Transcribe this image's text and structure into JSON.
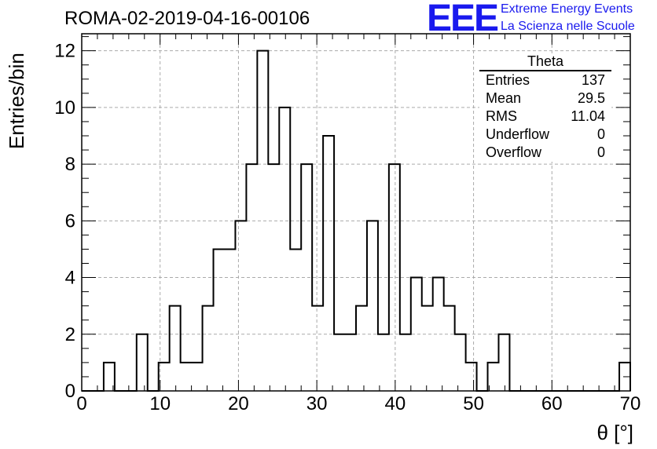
{
  "header": {
    "title": "ROMA-02-2019-04-16-00106",
    "logo_text": "EEE",
    "logo_line1": "Extreme Energy Events",
    "logo_line2": "La Scienza nelle Scuole",
    "logo_color": "#1a1aee"
  },
  "stats": {
    "title": "Theta",
    "rows": [
      {
        "label": "Entries",
        "value": "137"
      },
      {
        "label": "Mean",
        "value": "29.5"
      },
      {
        "label": "RMS",
        "value": "11.04"
      },
      {
        "label": "Underflow",
        "value": "0"
      },
      {
        "label": "Overflow",
        "value": "0"
      }
    ]
  },
  "chart_data": {
    "type": "bar",
    "histogram": true,
    "title": "ROMA-02-2019-04-16-00106",
    "xlabel": "θ [°]",
    "ylabel": "Entries/bin",
    "xlim": [
      0,
      70
    ],
    "ylim": [
      0,
      12.6
    ],
    "bin_width": 1.4,
    "x_ticks": [
      0,
      10,
      20,
      30,
      40,
      50,
      60,
      70
    ],
    "y_ticks": [
      0,
      2,
      4,
      6,
      8,
      10,
      12
    ],
    "grid": true,
    "values": [
      0,
      0,
      1,
      0,
      0,
      2,
      0,
      1,
      3,
      1,
      1,
      3,
      5,
      5,
      6,
      8,
      12,
      8,
      10,
      5,
      8,
      3,
      9,
      2,
      2,
      3,
      6,
      2,
      8,
      2,
      4,
      3,
      4,
      3,
      2,
      1,
      0,
      1,
      2,
      0,
      0,
      0,
      0,
      0,
      0,
      0,
      0,
      0,
      0,
      1
    ],
    "line_color": "#000000"
  }
}
